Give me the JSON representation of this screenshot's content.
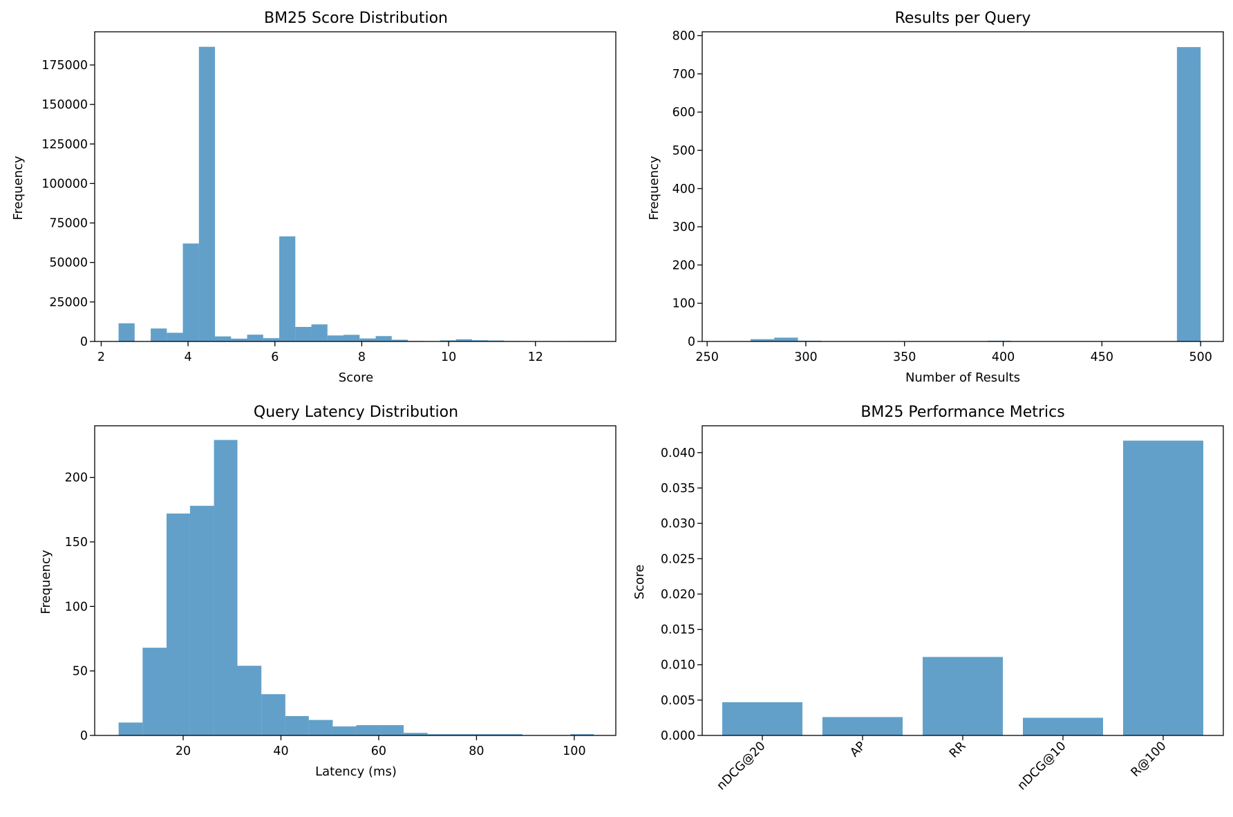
{
  "figure_colors": {
    "bar": "#1f77b4",
    "bar_opacity": 0.7,
    "axes": "#000000",
    "background": "#ffffff"
  },
  "chart_data": [
    {
      "id": "score",
      "type": "histogram",
      "title": "BM25 Score Distribution",
      "xlabel": "Score",
      "ylabel": "Frequency",
      "xlim": [
        1.85,
        13.85
      ],
      "ylim": [
        0,
        196000
      ],
      "xticks": [
        2,
        4,
        6,
        8,
        10,
        12
      ],
      "yticks": [
        0,
        25000,
        50000,
        75000,
        100000,
        125000,
        150000,
        175000
      ],
      "bins": [
        {
          "x0": 2.4,
          "x1": 2.77,
          "value": 11500
        },
        {
          "x0": 2.77,
          "x1": 3.14,
          "value": 0
        },
        {
          "x0": 3.14,
          "x1": 3.51,
          "value": 8200
        },
        {
          "x0": 3.51,
          "x1": 3.88,
          "value": 5500
        },
        {
          "x0": 3.88,
          "x1": 4.25,
          "value": 62000
        },
        {
          "x0": 4.25,
          "x1": 4.62,
          "value": 186500
        },
        {
          "x0": 4.62,
          "x1": 4.99,
          "value": 3200
        },
        {
          "x0": 4.99,
          "x1": 5.36,
          "value": 1800
        },
        {
          "x0": 5.36,
          "x1": 5.73,
          "value": 4300
        },
        {
          "x0": 5.73,
          "x1": 6.1,
          "value": 2100
        },
        {
          "x0": 6.1,
          "x1": 6.47,
          "value": 66500
        },
        {
          "x0": 6.47,
          "x1": 6.84,
          "value": 9200
        },
        {
          "x0": 6.84,
          "x1": 7.21,
          "value": 10800
        },
        {
          "x0": 7.21,
          "x1": 7.58,
          "value": 3800
        },
        {
          "x0": 7.58,
          "x1": 7.95,
          "value": 4200
        },
        {
          "x0": 7.95,
          "x1": 8.32,
          "value": 1900
        },
        {
          "x0": 8.32,
          "x1": 8.69,
          "value": 3400
        },
        {
          "x0": 8.69,
          "x1": 9.06,
          "value": 1100
        },
        {
          "x0": 9.06,
          "x1": 9.43,
          "value": 300
        },
        {
          "x0": 9.43,
          "x1": 9.8,
          "value": 200
        },
        {
          "x0": 9.8,
          "x1": 10.17,
          "value": 700
        },
        {
          "x0": 10.17,
          "x1": 10.54,
          "value": 1400
        },
        {
          "x0": 10.54,
          "x1": 10.91,
          "value": 800
        },
        {
          "x0": 10.91,
          "x1": 11.28,
          "value": 600
        },
        {
          "x0": 11.28,
          "x1": 11.65,
          "value": 300
        },
        {
          "x0": 11.65,
          "x1": 12.02,
          "value": 200
        },
        {
          "x0": 12.02,
          "x1": 12.39,
          "value": 150
        },
        {
          "x0": 12.39,
          "x1": 12.76,
          "value": 100
        },
        {
          "x0": 12.76,
          "x1": 13.13,
          "value": 60
        },
        {
          "x0": 13.13,
          "x1": 13.5,
          "value": 40
        }
      ]
    },
    {
      "id": "results",
      "type": "histogram",
      "title": "Results per Query",
      "xlabel": "Number of Results",
      "ylabel": "Frequency",
      "xlim": [
        247.5,
        511.5
      ],
      "ylim": [
        0,
        810
      ],
      "xticks": [
        250,
        300,
        350,
        400,
        450,
        500
      ],
      "yticks": [
        0,
        100,
        200,
        300,
        400,
        500,
        600,
        700,
        800
      ],
      "bins": [
        {
          "x0": 260,
          "x1": 272,
          "value": 1
        },
        {
          "x0": 272,
          "x1": 284,
          "value": 6
        },
        {
          "x0": 284,
          "x1": 296,
          "value": 10
        },
        {
          "x0": 296,
          "x1": 308,
          "value": 2
        },
        {
          "x0": 308,
          "x1": 392,
          "value": 0
        },
        {
          "x0": 392,
          "x1": 404,
          "value": 2
        },
        {
          "x0": 404,
          "x1": 488,
          "value": 0
        },
        {
          "x0": 488,
          "x1": 500,
          "value": 770
        }
      ]
    },
    {
      "id": "latency",
      "type": "histogram",
      "title": "Query Latency Distribution",
      "xlabel": "Latency (ms)",
      "ylabel": "Frequency",
      "xlim": [
        1.9,
        108.5
      ],
      "ylim": [
        0,
        240
      ],
      "xticks": [
        20,
        40,
        60,
        80,
        100
      ],
      "yticks": [
        0,
        50,
        100,
        150,
        200
      ],
      "bins": [
        {
          "x0": 6.8,
          "x1": 11.7,
          "value": 10
        },
        {
          "x0": 11.7,
          "x1": 16.6,
          "value": 68
        },
        {
          "x0": 16.6,
          "x1": 21.4,
          "value": 172
        },
        {
          "x0": 21.4,
          "x1": 26.3,
          "value": 178
        },
        {
          "x0": 26.3,
          "x1": 31.1,
          "value": 229
        },
        {
          "x0": 31.1,
          "x1": 36.0,
          "value": 54
        },
        {
          "x0": 36.0,
          "x1": 40.9,
          "value": 32
        },
        {
          "x0": 40.9,
          "x1": 45.7,
          "value": 15
        },
        {
          "x0": 45.7,
          "x1": 50.6,
          "value": 12
        },
        {
          "x0": 50.6,
          "x1": 55.4,
          "value": 7
        },
        {
          "x0": 55.4,
          "x1": 60.3,
          "value": 8
        },
        {
          "x0": 60.3,
          "x1": 65.1,
          "value": 8
        },
        {
          "x0": 65.1,
          "x1": 70.0,
          "value": 2
        },
        {
          "x0": 70.0,
          "x1": 74.9,
          "value": 1
        },
        {
          "x0": 74.9,
          "x1": 79.7,
          "value": 1
        },
        {
          "x0": 79.7,
          "x1": 84.6,
          "value": 1
        },
        {
          "x0": 84.6,
          "x1": 89.4,
          "value": 1
        },
        {
          "x0": 89.4,
          "x1": 94.3,
          "value": 0
        },
        {
          "x0": 94.3,
          "x1": 99.2,
          "value": 0
        },
        {
          "x0": 99.2,
          "x1": 104.0,
          "value": 1
        }
      ]
    },
    {
      "id": "metrics",
      "type": "bar",
      "title": "BM25 Performance Metrics",
      "xlabel": "",
      "ylabel": "Score",
      "categories": [
        "nDCG@20",
        "AP",
        "RR",
        "nDCG@10",
        "R@100"
      ],
      "values": [
        0.0047,
        0.0026,
        0.0111,
        0.0025,
        0.0417
      ],
      "ylim": [
        0,
        0.0438
      ],
      "yticks": [
        "0.000",
        "0.005",
        "0.010",
        "0.015",
        "0.020",
        "0.025",
        "0.030",
        "0.035",
        "0.040"
      ],
      "xtick_rotation_deg": 45
    }
  ]
}
